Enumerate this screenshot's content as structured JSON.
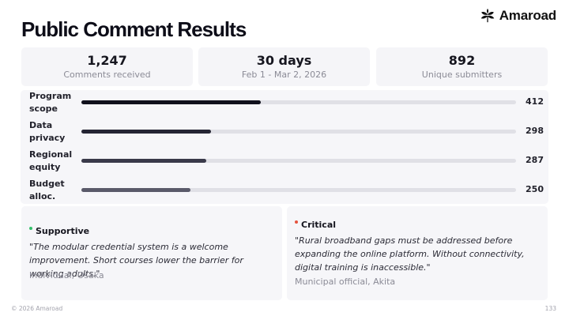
{
  "brand": {
    "name": "Amaroad",
    "icon": "leaf-logo-icon"
  },
  "page_title": "Public Comment Results",
  "stats": [
    {
      "value": "1,247",
      "label": "Comments received"
    },
    {
      "value": "30 days",
      "label": "Feb 1 - Mar 2, 2026"
    },
    {
      "value": "892",
      "label": "Unique submitters"
    }
  ],
  "bars": {
    "max": 1000,
    "items": [
      {
        "label": "Program scope",
        "value": 412,
        "value_label": "412",
        "color": "#11111d"
      },
      {
        "label": "Data privacy",
        "value": 298,
        "value_label": "298",
        "color": "#252534"
      },
      {
        "label": "Regional equity",
        "value": 287,
        "value_label": "287",
        "color": "#3a3a4a"
      },
      {
        "label": "Budget alloc.",
        "value": 250,
        "value_label": "250",
        "color": "#5a5a6a"
      }
    ]
  },
  "quotes": [
    {
      "tag": "Supportive",
      "dot_color": "#34c06a",
      "text": "\"The modular credential system is a welcome improvement. Short courses lower the barrier for working adults.\"",
      "source": "Individual, Osaka"
    },
    {
      "tag": "Critical",
      "dot_color": "#e5533d",
      "text": "\"Rural broadband gaps must be addressed before expanding the online platform. Without connectivity, digital training is inaccessible.\"",
      "source": "Municipal official, Akita"
    }
  ],
  "footer": {
    "copyright": "© 2026 Amaroad",
    "page_number": "133"
  }
}
